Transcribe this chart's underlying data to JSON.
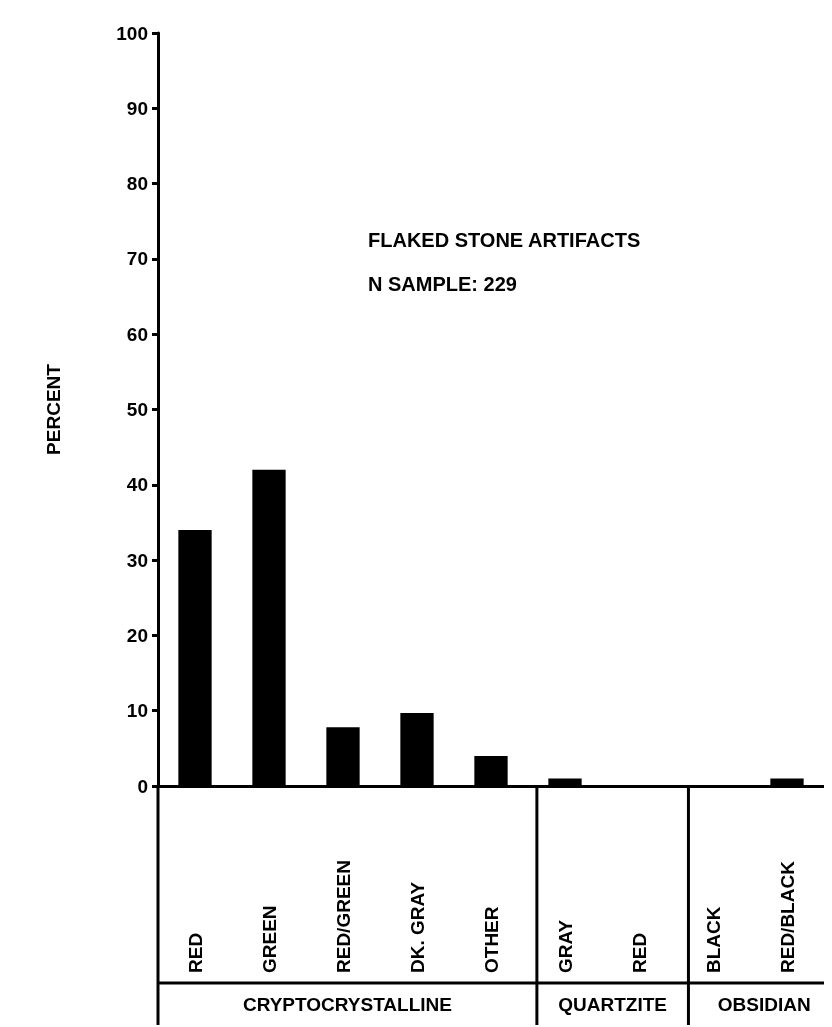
{
  "chart_data": {
    "type": "bar",
    "title": "FLAKED STONE ARTIFACTS",
    "subtitle": "N SAMPLE: 229",
    "ylabel": "PERCENT",
    "categories": [
      "RED",
      "GREEN",
      "RED/GREEN",
      "DK. GRAY",
      "OTHER",
      "GRAY",
      "RED",
      "BLACK",
      "RED/BLACK"
    ],
    "values": [
      34,
      42,
      7.8,
      9.7,
      4,
      1,
      0,
      0,
      1
    ],
    "color": "#000000",
    "ylim": [
      0,
      100
    ],
    "yticks": [
      0,
      10,
      20,
      30,
      40,
      50,
      60,
      70,
      80,
      90,
      100
    ],
    "grid": false,
    "annotations": [
      "CRYPTOCRYSTALLINE",
      "QUARTZITE",
      "OBSIDIAN"
    ]
  }
}
